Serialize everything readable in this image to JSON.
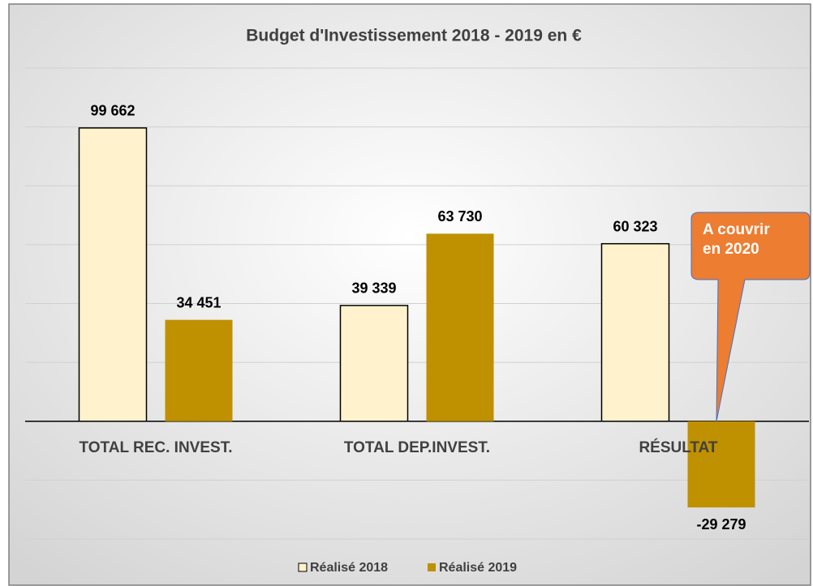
{
  "chart_data": {
    "type": "bar",
    "title": "Budget d'Investissement 2018 - 2019 en €",
    "categories": [
      "TOTAL REC. INVEST.",
      "TOTAL DEP.INVEST.",
      "RÉSULTAT"
    ],
    "series": [
      {
        "name": "Réalisé 2018",
        "color": "#fff2cc",
        "values": [
          99662,
          39339,
          60323
        ],
        "value_labels": [
          "99 662",
          "39 339",
          "60 323"
        ]
      },
      {
        "name": "Réalisé 2019",
        "color": "#bf9000",
        "values": [
          34451,
          63730,
          -29279
        ],
        "value_labels": [
          "34 451",
          "63 730",
          "-29 279"
        ]
      }
    ],
    "ylim": [
      -40000,
      120000
    ],
    "yticks": [
      -40000,
      -20000,
      0,
      20000,
      40000,
      60000,
      80000,
      100000,
      120000
    ],
    "grid": true,
    "legend": "bottom",
    "annotation": "A couvrir\nen 2020"
  }
}
